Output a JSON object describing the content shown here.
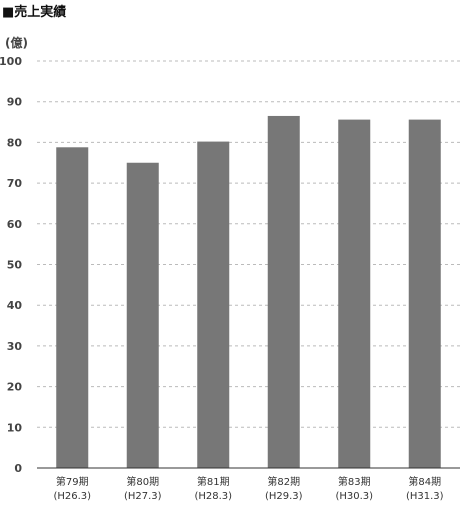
{
  "title": "■売上実績",
  "unit_label": "(億)",
  "colors": {
    "bar": "#777777",
    "gridline": "#bbbbbb",
    "axis": "#333333",
    "tick_text": "#444444",
    "category_text": "#333333"
  },
  "chart_data": {
    "type": "bar",
    "title": "■売上実績",
    "ylabel": "(億)",
    "xlabel": "",
    "ylim": [
      0,
      100
    ],
    "yticks": [
      0,
      10,
      20,
      30,
      40,
      50,
      60,
      70,
      80,
      90,
      100
    ],
    "grid": true,
    "categories": [
      [
        "第79期",
        "(H26.3)"
      ],
      [
        "第80期",
        "(H27.3)"
      ],
      [
        "第81期",
        "(H28.3)"
      ],
      [
        "第82期",
        "(H29.3)"
      ],
      [
        "第83期",
        "(H30.3)"
      ],
      [
        "第84期",
        "(H31.3)"
      ]
    ],
    "values": [
      78.8,
      75.0,
      80.2,
      86.5,
      85.6,
      85.6
    ]
  }
}
